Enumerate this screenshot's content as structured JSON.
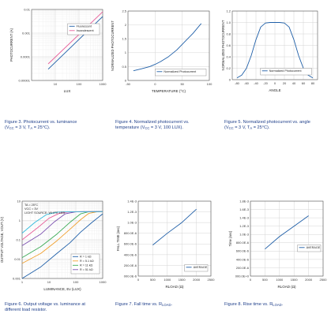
{
  "colors": {
    "blue": "#1f5fa8",
    "pink": "#e8609a",
    "orange": "#f0a030",
    "green": "#3aaa55",
    "purple": "#7b4fb0",
    "cyan": "#33bbdd",
    "caption": "#1f3f8a"
  },
  "chart_data": [
    {
      "id": "fig3",
      "type": "line",
      "xscale": "log",
      "yscale": "log",
      "xlabel": "LUX",
      "ylabel": "PHOTOCURRENT (A)",
      "xlim": [
        1,
        1000
      ],
      "ylim": [
        1e-05,
        0.01
      ],
      "xticks": [
        {
          "v": 10,
          "label": "10"
        },
        {
          "v": 100,
          "label": "100"
        },
        {
          "v": 1000,
          "label": "1000"
        }
      ],
      "yticks": [
        {
          "v": 1e-05,
          "label": "0.00001"
        },
        {
          "v": 0.0001,
          "label": "0.0001"
        },
        {
          "v": 0.001,
          "label": "0.001"
        },
        {
          "v": 0.01,
          "label": "0.01"
        }
      ],
      "legend": {
        "position": "top-right",
        "border": true
      },
      "series": [
        {
          "name": "Fluorescent",
          "color": "#1f5fa8",
          "points": [
            [
              5,
              3e-05
            ],
            [
              1000,
              0.005
            ]
          ]
        },
        {
          "name": "Incandescent",
          "color": "#e8609a",
          "points": [
            [
              5,
              5e-05
            ],
            [
              1000,
              0.008
            ]
          ]
        }
      ]
    },
    {
      "id": "fig4",
      "type": "line",
      "xlabel": "TEMPERATURE (°C)",
      "ylabel": "NORMALIZED PHOTOCURRENT",
      "xlim": [
        -50,
        100
      ],
      "ylim": [
        0,
        2.5
      ],
      "xticks": [
        {
          "v": -50,
          "label": "-50"
        },
        {
          "v": 0,
          "label": "0"
        },
        {
          "v": 50,
          "label": "50"
        },
        {
          "v": 100,
          "label": "100"
        }
      ],
      "yticks": [
        {
          "v": 0,
          "label": "0"
        },
        {
          "v": 0.5,
          "label": "0.5"
        },
        {
          "v": 1,
          "label": "1"
        },
        {
          "v": 1.5,
          "label": "1.5"
        },
        {
          "v": 2,
          "label": "2"
        },
        {
          "v": 2.5,
          "label": "2.5"
        }
      ],
      "legend": {
        "position": "bottom-right",
        "border": true
      },
      "series": [
        {
          "name": "Normalized Photocurrent",
          "color": "#1f5fa8",
          "points": [
            [
              -40,
              0.35
            ],
            [
              -25,
              0.42
            ],
            [
              -10,
              0.5
            ],
            [
              0,
              0.58
            ],
            [
              10,
              0.68
            ],
            [
              25,
              0.86
            ],
            [
              40,
              1.1
            ],
            [
              55,
              1.4
            ],
            [
              70,
              1.7
            ],
            [
              85,
              2.05
            ]
          ]
        }
      ]
    },
    {
      "id": "fig5",
      "type": "line",
      "xlabel": "ANGLE",
      "ylabel": "NORMALIZED PHOTOCURRENT",
      "xlim": [
        -90,
        90
      ],
      "ylim": [
        0,
        1.2
      ],
      "xticks": [
        {
          "v": -80,
          "label": "-80"
        },
        {
          "v": -60,
          "label": "-60"
        },
        {
          "v": -40,
          "label": "-40"
        },
        {
          "v": -20,
          "label": "-20"
        },
        {
          "v": 0,
          "label": "0"
        },
        {
          "v": 20,
          "label": "20"
        },
        {
          "v": 40,
          "label": "40"
        },
        {
          "v": 60,
          "label": "60"
        },
        {
          "v": 80,
          "label": "80"
        }
      ],
      "yticks": [
        {
          "v": 0,
          "label": "0"
        },
        {
          "v": 0.2,
          "label": "0.2"
        },
        {
          "v": 0.4,
          "label": "0.4"
        },
        {
          "v": 0.6,
          "label": "0.6"
        },
        {
          "v": 0.8,
          "label": "0.8"
        },
        {
          "v": 1,
          "label": "1.0"
        },
        {
          "v": 1.2,
          "label": "1.2"
        }
      ],
      "legend": {
        "position": "bottom-center",
        "border": true
      },
      "series": [
        {
          "name": "Normalized Photocurrent",
          "color": "#1f5fa8",
          "points": [
            [
              -80,
              0.03
            ],
            [
              -70,
              0.08
            ],
            [
              -60,
              0.2
            ],
            [
              -50,
              0.42
            ],
            [
              -40,
              0.7
            ],
            [
              -30,
              0.92
            ],
            [
              -20,
              0.99
            ],
            [
              -10,
              1.0
            ],
            [
              0,
              1.0
            ],
            [
              10,
              1.0
            ],
            [
              20,
              0.99
            ],
            [
              30,
              0.92
            ],
            [
              40,
              0.7
            ],
            [
              50,
              0.42
            ],
            [
              60,
              0.2
            ],
            [
              70,
              0.08
            ],
            [
              80,
              0.03
            ]
          ]
        }
      ]
    },
    {
      "id": "fig6",
      "type": "line",
      "xscale": "log",
      "yscale": "log",
      "xlabel": "LUMINANCE, Ev (LUX)",
      "ylabel": "OUTPUT VOLTAGE, VOUT (V)",
      "xlim": [
        1,
        1000
      ],
      "ylim": [
        0.001,
        10
      ],
      "xticks": [
        {
          "v": 1,
          "label": "1"
        },
        {
          "v": 10,
          "label": "10"
        },
        {
          "v": 100,
          "label": "100"
        },
        {
          "v": 1000,
          "label": "1000"
        }
      ],
      "yticks": [
        {
          "v": 0.001,
          "label": "0.001"
        },
        {
          "v": 0.01,
          "label": "0.01"
        },
        {
          "v": 0.1,
          "label": "0.1"
        },
        {
          "v": 1,
          "label": "1"
        },
        {
          "v": 10,
          "label": "10"
        }
      ],
      "conditions": [
        "TA = 25°C",
        "VCC = 3V",
        "LIGHT SOURCE: WHITE LED"
      ],
      "legend": {
        "position": "bottom-right",
        "border": true
      },
      "series": [
        {
          "name": "R = 1 kΩ",
          "color": "#1f5fa8",
          "points": [
            [
              1,
              0.001
            ],
            [
              5,
              0.004
            ],
            [
              20,
              0.02
            ],
            [
              60,
              0.07
            ],
            [
              150,
              0.25
            ],
            [
              400,
              0.8
            ],
            [
              1000,
              2.2
            ]
          ]
        },
        {
          "name": "R = 5.1 kΩ",
          "color": "#f0a030",
          "points": [
            [
              1,
              0.006
            ],
            [
              5,
              0.02
            ],
            [
              20,
              0.09
            ],
            [
              60,
              0.35
            ],
            [
              150,
              1.1
            ],
            [
              300,
              2.3
            ],
            [
              600,
              2.8
            ],
            [
              1000,
              2.9
            ]
          ]
        },
        {
          "name": "R = 11 kΩ",
          "color": "#3aaa55",
          "points": [
            [
              1,
              0.012
            ],
            [
              5,
              0.045
            ],
            [
              20,
              0.2
            ],
            [
              60,
              0.8
            ],
            [
              150,
              2.2
            ],
            [
              300,
              2.8
            ],
            [
              1000,
              2.9
            ]
          ]
        },
        {
          "name": "R = 51 kΩ",
          "color": "#7b4fb0",
          "points": [
            [
              1,
              0.05
            ],
            [
              5,
              0.2
            ],
            [
              15,
              0.8
            ],
            [
              40,
              2.2
            ],
            [
              100,
              2.8
            ],
            [
              1000,
              2.9
            ]
          ]
        },
        {
          "name": "",
          "color": "#e8609a",
          "points": [
            [
              1,
              0.1
            ],
            [
              4,
              0.45
            ],
            [
              10,
              1.3
            ],
            [
              25,
              2.4
            ],
            [
              60,
              2.8
            ],
            [
              1000,
              2.9
            ]
          ]
        },
        {
          "name": "",
          "color": "#33bbdd",
          "points": [
            [
              1,
              0.22
            ],
            [
              3,
              0.8
            ],
            [
              8,
              2.0
            ],
            [
              20,
              2.7
            ],
            [
              60,
              2.85
            ],
            [
              1000,
              2.9
            ]
          ]
        }
      ]
    },
    {
      "id": "fig7",
      "type": "line",
      "xlabel": "RLOAD (Ω)",
      "ylabel": "FALL TIME (sec)",
      "xlim": [
        0,
        2500
      ],
      "ylim": [
        0,
        0.0014
      ],
      "xticks": [
        {
          "v": 0,
          "label": "0"
        },
        {
          "v": 500,
          "label": "500"
        },
        {
          "v": 1000,
          "label": "1000"
        },
        {
          "v": 1500,
          "label": "1500"
        },
        {
          "v": 2000,
          "label": "2000"
        },
        {
          "v": 2500,
          "label": "2500"
        }
      ],
      "yticks": [
        {
          "v": 0,
          "label": "000.0E-6"
        },
        {
          "v": 0.0002,
          "label": "200.0E-6"
        },
        {
          "v": 0.0004,
          "label": "400.0E-6"
        },
        {
          "v": 0.0006,
          "label": "600.0E-6"
        },
        {
          "v": 0.0008,
          "label": "800.0E-6"
        },
        {
          "v": 0.001,
          "label": "1.0E-3"
        },
        {
          "v": 0.0012,
          "label": "1.2E-3"
        },
        {
          "v": 0.0014,
          "label": "1.4E-3"
        }
      ],
      "legend": {
        "position": "bottom-right",
        "border": true
      },
      "series": [
        {
          "name": "AVERAGE",
          "color": "#1f5fa8",
          "points": [
            [
              500,
              0.00058
            ],
            [
              1000,
              0.0008
            ],
            [
              1500,
              0.001
            ],
            [
              2000,
              0.00125
            ]
          ]
        }
      ]
    },
    {
      "id": "fig8",
      "type": "line",
      "xlabel": "RLOAD (Ω)",
      "ylabel": "Time (sec)",
      "xlim": [
        0,
        2500
      ],
      "ylim": [
        0,
        0.0018
      ],
      "xticks": [
        {
          "v": 0,
          "label": "0"
        },
        {
          "v": 500,
          "label": "500"
        },
        {
          "v": 1000,
          "label": "1000"
        },
        {
          "v": 1500,
          "label": "1500"
        },
        {
          "v": 2000,
          "label": "2000"
        },
        {
          "v": 2500,
          "label": "2500"
        }
      ],
      "yticks": [
        {
          "v": 0,
          "label": "000.0E+0"
        },
        {
          "v": 0.0002,
          "label": "200.0E-6"
        },
        {
          "v": 0.0004,
          "label": "400.0E-6"
        },
        {
          "v": 0.0006,
          "label": "600.0E-6"
        },
        {
          "v": 0.0008,
          "label": "800.0E-6"
        },
        {
          "v": 0.001,
          "label": "1.0E-3"
        },
        {
          "v": 0.0012,
          "label": "1.2E-3"
        },
        {
          "v": 0.0014,
          "label": "1.4E-3"
        },
        {
          "v": 0.0016,
          "label": "1.6E-3"
        },
        {
          "v": 0.0018,
          "label": "1.8E-3"
        }
      ],
      "legend": {
        "position": "middle-right",
        "border": true
      },
      "series": [
        {
          "name": "AVERAGE",
          "color": "#1f5fa8",
          "points": [
            [
              500,
              0.00065
            ],
            [
              1000,
              0.00095
            ],
            [
              1500,
              0.0012
            ],
            [
              2000,
              0.00145
            ]
          ]
        }
      ]
    }
  ],
  "captions": {
    "fig3": {
      "line1": "Figure 3. Photocurrent vs. luminance",
      "vcc_pre": "(V",
      "vcc_sub": "CC",
      "vcc_post": " = 3 V, T",
      "ta_sub": "A",
      "ta_post": " = 25°C)."
    },
    "fig4": {
      "line1": "Figure 4. Normalized photocurrent vs.",
      "line2_pre": "temperature (V",
      "vcc_sub": "CC",
      "line2_post": " = 3 V, 100 LUX)."
    },
    "fig5": {
      "line1": "Figure 5. Normalized photocurrent vs. angle",
      "vcc_pre": "(V",
      "vcc_sub": "CC",
      "vcc_post": " = 3 V, T",
      "ta_sub": "A",
      "ta_post": " = 25°C)."
    },
    "fig6": {
      "line1": "Figure 6. Output voltage vs. luminance at",
      "line2": "different load resistor."
    },
    "fig7": {
      "pre": "Figure 7. Fall time vs. R",
      "sub": "LOAD",
      "post": "."
    },
    "fig8": {
      "pre": "Figure 8. Rise time vs. R",
      "sub": "LOAD",
      "post": "."
    }
  }
}
